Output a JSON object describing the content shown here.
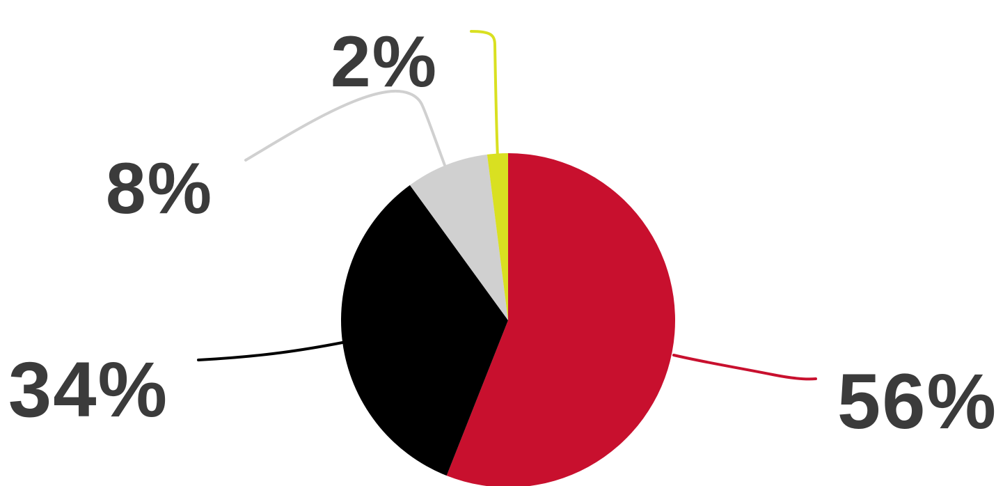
{
  "chart_data": {
    "type": "pie",
    "values": [
      56,
      34,
      8,
      2
    ],
    "labels": [
      "56%",
      "34%",
      "8%",
      "2%"
    ],
    "colors": [
      "#c8102e",
      "#000000",
      "#d0d0d0",
      "#d9e021"
    ],
    "start_angle_deg": 0,
    "direction": "clockwise",
    "legend": "none",
    "label_color": "#3b3b3b"
  }
}
